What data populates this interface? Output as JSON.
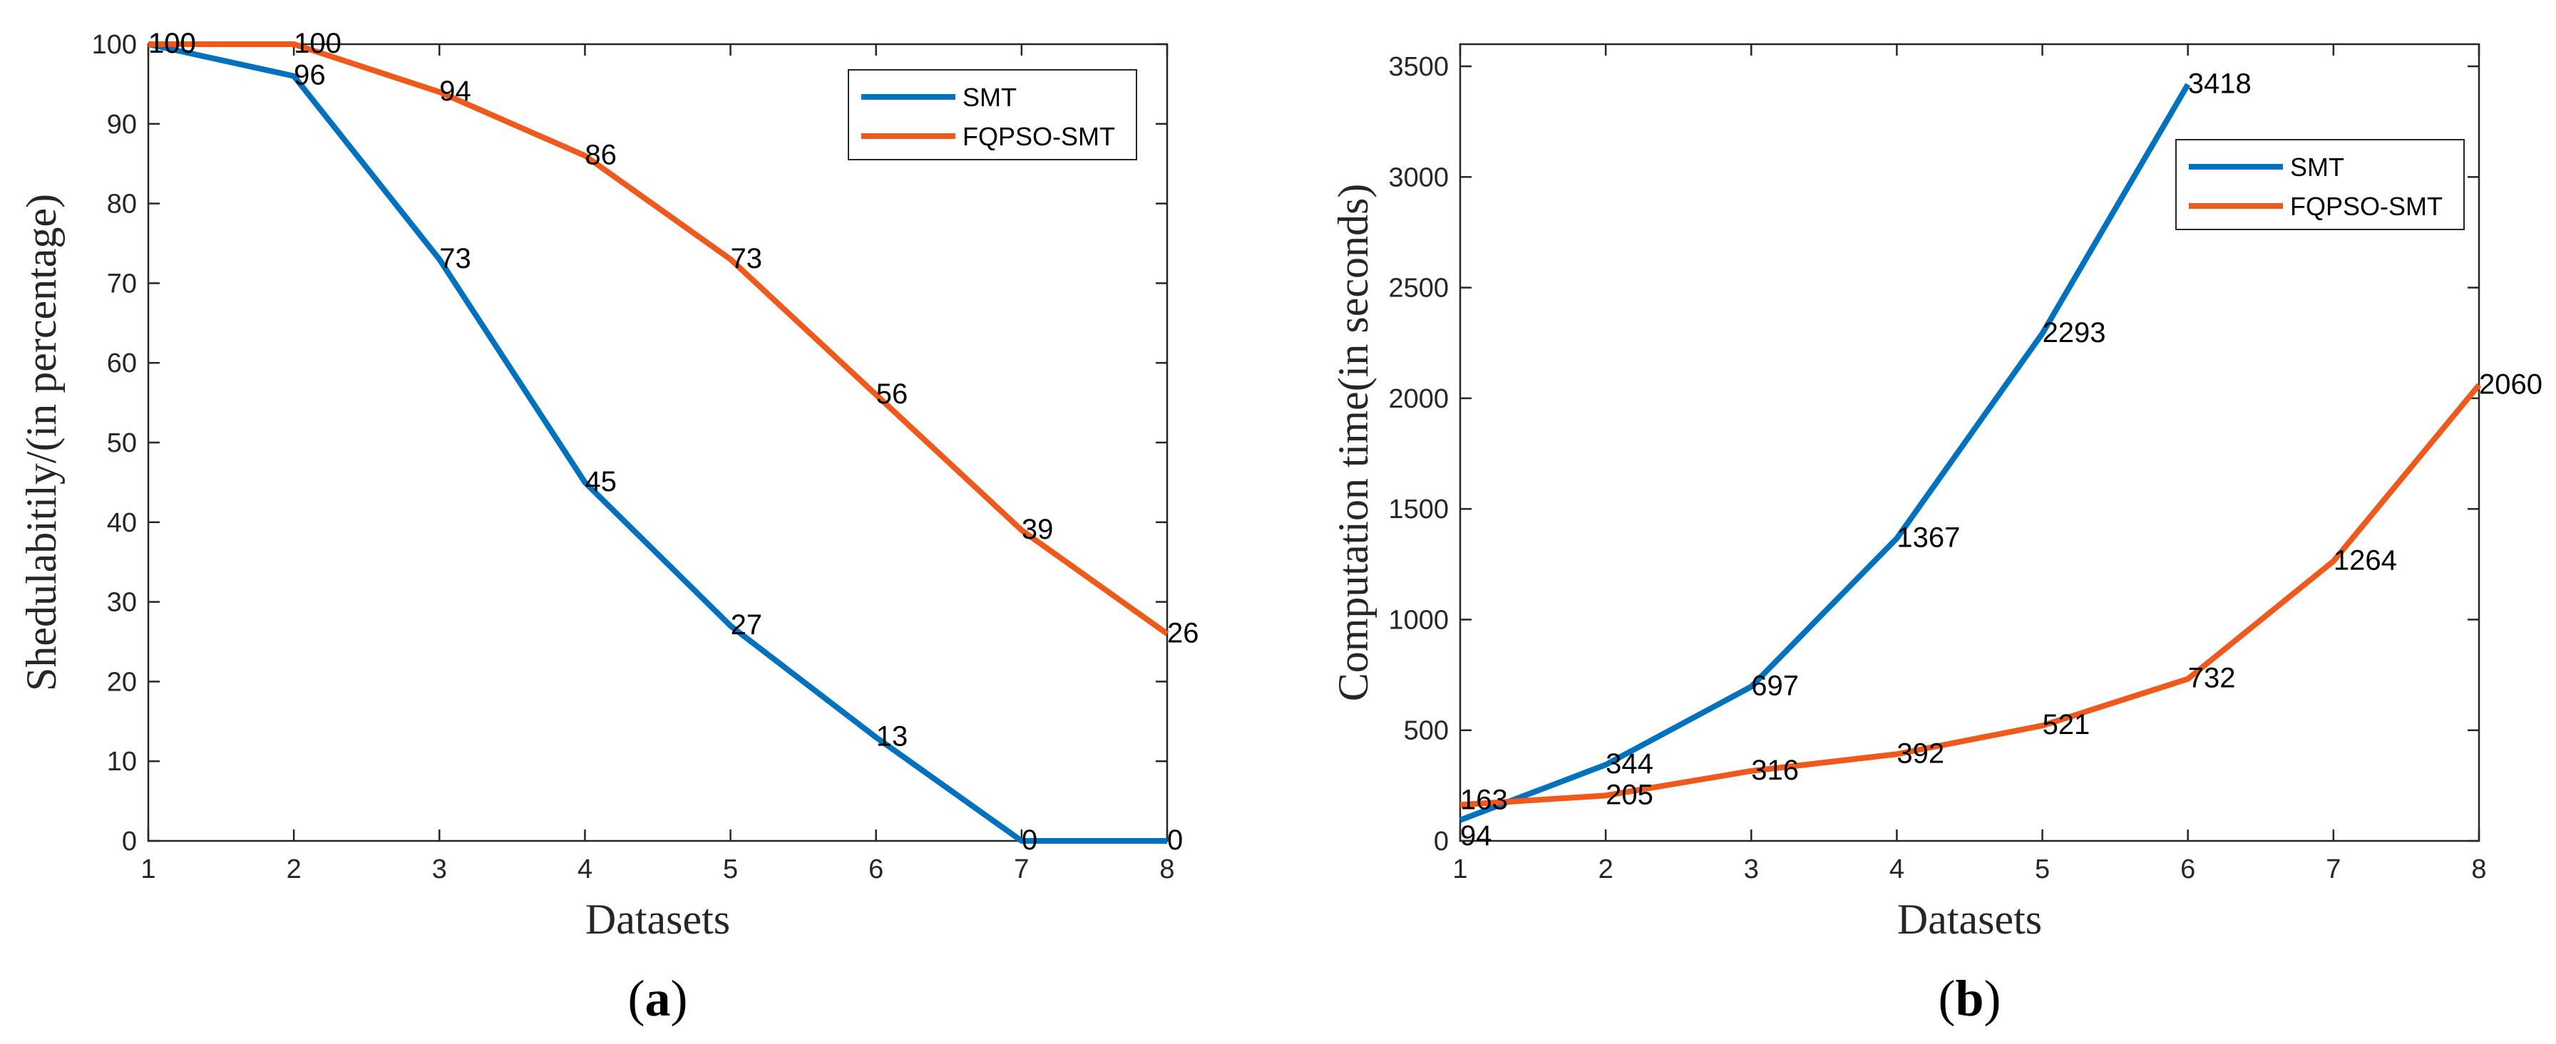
{
  "colors": {
    "smt": "#0072BD",
    "fqpso": "#EE5A1C",
    "axis": "#262626"
  },
  "chart_data": [
    {
      "type": "line",
      "panel": {
        "open": "(",
        "letter": "a",
        "close": ")"
      },
      "xlabel": "Datasets",
      "ylabel": "Shedulabitily/(in percentage)",
      "xlim": [
        1,
        8
      ],
      "ylim": [
        0,
        100
      ],
      "xticks": [
        1,
        2,
        3,
        4,
        5,
        6,
        7,
        8
      ],
      "yticks": [
        0,
        10,
        20,
        30,
        40,
        50,
        60,
        70,
        80,
        90,
        100
      ],
      "legend_position": "top-right",
      "series": [
        {
          "name": "SMT",
          "color": "#0072BD",
          "x": [
            1,
            2,
            3,
            4,
            5,
            6,
            7,
            8
          ],
          "values": [
            100,
            96,
            73,
            45,
            27,
            13,
            0,
            0
          ],
          "labels": [
            "100",
            "96",
            "73",
            "45",
            "27",
            "13",
            "0",
            "0"
          ]
        },
        {
          "name": "FQPSO-SMT",
          "color": "#EE5A1C",
          "x": [
            1,
            2,
            3,
            4,
            5,
            6,
            7,
            8
          ],
          "values": [
            100,
            100,
            94,
            86,
            73,
            56,
            39,
            26
          ],
          "labels": [
            "100",
            "100",
            "94",
            "86",
            "73",
            "56",
            "39",
            "26"
          ]
        }
      ]
    },
    {
      "type": "line",
      "panel": {
        "open": "(",
        "letter": "b",
        "close": ")"
      },
      "xlabel": "Datasets",
      "ylabel": "Computation time(in seconds)",
      "xlim": [
        1,
        8
      ],
      "ylim": [
        0,
        3600
      ],
      "xticks": [
        1,
        2,
        3,
        4,
        5,
        6,
        7,
        8
      ],
      "yticks": [
        0,
        500,
        1000,
        1500,
        2000,
        2500,
        3000,
        3500
      ],
      "legend_position": "top-right",
      "series": [
        {
          "name": "SMT",
          "color": "#0072BD",
          "x": [
            1,
            2,
            3,
            4,
            5,
            6
          ],
          "values": [
            94,
            344,
            697,
            1367,
            2293,
            3418
          ],
          "labels": [
            "94",
            "344",
            "697",
            "1367",
            "2293",
            "3418"
          ]
        },
        {
          "name": "FQPSO-SMT",
          "color": "#EE5A1C",
          "x": [
            1,
            2,
            3,
            4,
            5,
            6,
            7,
            8
          ],
          "values": [
            163,
            205,
            316,
            392,
            521,
            732,
            1264,
            2060
          ],
          "labels": [
            "163",
            "205",
            "316",
            "392",
            "521",
            "732",
            "1264",
            "2060"
          ]
        }
      ]
    }
  ]
}
